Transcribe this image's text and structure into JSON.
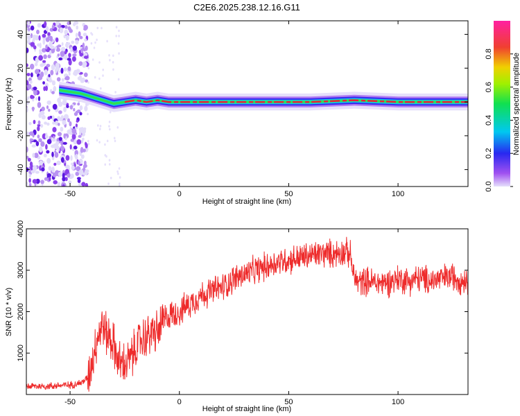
{
  "title": "C2E6.2025.238.12.16.G11",
  "colors": {
    "snr_line": "#ee2b2b",
    "ridge_core": "#e8213a",
    "colorbar_stops": [
      "#d8d0f8",
      "#9040f0",
      "#2020f0",
      "#00c8f0",
      "#20e040",
      "#b0f000",
      "#f0c000",
      "#f03030",
      "#ff20a0"
    ]
  },
  "chart_data": [
    {
      "type": "heatmap",
      "name": "spectrogram",
      "xlabel": "Height of straight line (km)",
      "ylabel": "Frequency (Hz)",
      "xlim": [
        -70,
        132
      ],
      "ylim": [
        -50,
        48
      ],
      "x_ticks": [
        -50,
        0,
        50,
        100
      ],
      "x_tick_labels": [
        "-50",
        "0",
        "50",
        "100"
      ],
      "y_ticks": [
        -40,
        -20,
        0,
        20,
        40
      ],
      "y_tick_labels": [
        "-40",
        "-20",
        "0",
        "20",
        "40"
      ],
      "ridge": {
        "x": [
          -55,
          -50,
          -45,
          -40,
          -35,
          -30,
          -25,
          -20,
          -15,
          -10,
          -5,
          0,
          20,
          40,
          60,
          80,
          100,
          120,
          132
        ],
        "freq": [
          7,
          6,
          5,
          3,
          1,
          -1,
          0,
          1,
          0,
          1,
          0,
          0,
          0,
          0,
          0,
          1,
          0,
          0,
          0
        ]
      },
      "noise_region": [
        -70,
        -42
      ],
      "colorbar": {
        "label": "Normalized spectral amplitude",
        "range": [
          0,
          1
        ],
        "ticks": [
          0.0,
          0.2,
          0.4,
          0.6,
          0.8
        ],
        "tick_labels": [
          "0.0",
          "0.2",
          "0.4",
          "0.6",
          "0.8"
        ]
      }
    },
    {
      "type": "line",
      "name": "snr",
      "xlabel": "Height of straight line (km)",
      "ylabel": "SNR (10 * v/v)",
      "xlim": [
        -70,
        132
      ],
      "ylim": [
        0,
        4000
      ],
      "x_ticks": [
        -50,
        0,
        50,
        100
      ],
      "x_tick_labels": [
        "-50",
        "0",
        "50",
        "100"
      ],
      "y_ticks": [
        1000,
        2000,
        3000,
        4000
      ],
      "y_tick_labels": [
        "1000",
        "2000",
        "3000",
        "4000"
      ],
      "series": [
        {
          "name": "SNR",
          "x": [
            -70,
            -60,
            -50,
            -45,
            -42,
            -40,
            -38,
            -36,
            -35,
            -34,
            -32,
            -30,
            -28,
            -25,
            -22,
            -20,
            -18,
            -15,
            -12,
            -10,
            -8,
            -5,
            0,
            5,
            10,
            15,
            20,
            25,
            30,
            35,
            40,
            45,
            50,
            55,
            60,
            65,
            70,
            75,
            78,
            80,
            82,
            85,
            90,
            95,
            100,
            105,
            110,
            115,
            120,
            125,
            130,
            132
          ],
          "values": [
            200,
            200,
            230,
            280,
            400,
            800,
            1300,
            1600,
            1700,
            1500,
            1400,
            1200,
            800,
            700,
            900,
            1100,
            1300,
            1400,
            1500,
            1500,
            1700,
            1900,
            2000,
            2200,
            2400,
            2500,
            2600,
            2800,
            2900,
            3000,
            3100,
            3200,
            3250,
            3300,
            3350,
            3400,
            3400,
            3450,
            3400,
            2800,
            2700,
            2750,
            2700,
            2700,
            2800,
            2750,
            2800,
            2750,
            2800,
            2850,
            2750,
            2800
          ]
        }
      ]
    }
  ]
}
